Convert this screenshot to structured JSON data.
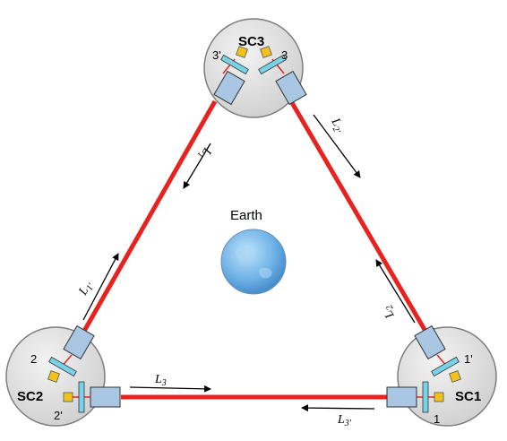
{
  "spacecraft": [
    {
      "id": "sc3",
      "label": "SC3",
      "ports": [
        "3'",
        "3"
      ]
    },
    {
      "id": "sc2",
      "label": "SC2",
      "ports": [
        "2",
        "2'"
      ]
    },
    {
      "id": "sc1",
      "label": "SC1",
      "ports": [
        "1'",
        "1"
      ]
    }
  ],
  "center": {
    "label": "Earth"
  },
  "arms": [
    {
      "id": "l1",
      "base": "L",
      "sub": "1"
    },
    {
      "id": "l1p",
      "base": "L",
      "sub": "1'"
    },
    {
      "id": "l2",
      "base": "L",
      "sub": "2"
    },
    {
      "id": "l2p",
      "base": "L",
      "sub": "2'"
    },
    {
      "id": "l3",
      "base": "L",
      "sub": "3"
    },
    {
      "id": "l3p",
      "base": "L",
      "sub": "3'"
    }
  ],
  "colors": {
    "laser": "#e8231f",
    "spacecraft_fill": "#d9d9d9",
    "telescope": "#a9c6e2",
    "mirror": "#79d3e8",
    "test_mass": "#f2c21b",
    "earth": "#5fa4dc"
  }
}
